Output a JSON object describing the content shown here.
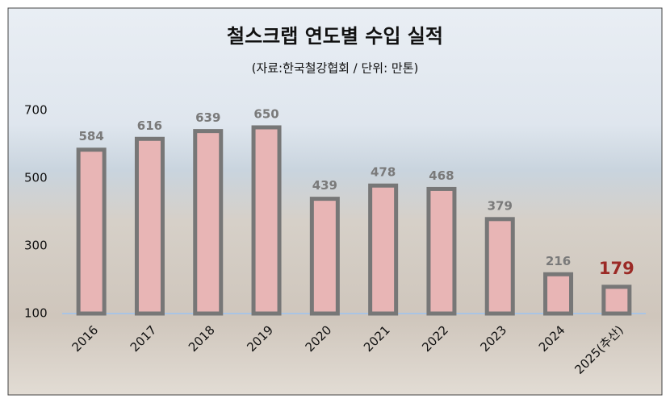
{
  "chart_data": {
    "type": "bar",
    "title": "철스크랩 연도별 수입 실적",
    "subtitle": "(자료:한국철강협회 / 단위: 만톤)",
    "categories": [
      "2016",
      "2017",
      "2018",
      "2019",
      "2020",
      "2021",
      "2022",
      "2023",
      "2024",
      "2025(추산)"
    ],
    "values": [
      584,
      616,
      639,
      650,
      439,
      478,
      468,
      379,
      216,
      179
    ],
    "color": "#e8b5b5",
    "border_color": "#777777",
    "label_colors": [
      "#7a7a7a",
      "#7a7a7a",
      "#7a7a7a",
      "#7a7a7a",
      "#7a7a7a",
      "#7a7a7a",
      "#7a7a7a",
      "#7a7a7a",
      "#7a7a7a",
      "#9b2a26"
    ],
    "ylim": [
      100,
      750
    ],
    "yticks": [
      100,
      300,
      500,
      700
    ],
    "grid": false
  }
}
